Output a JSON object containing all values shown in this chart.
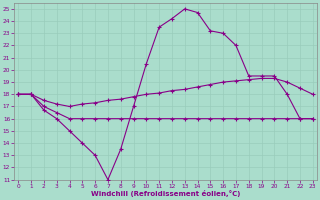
{
  "xlabel": "Windchill (Refroidissement éolien,°C)",
  "x": [
    0,
    1,
    2,
    3,
    4,
    5,
    6,
    7,
    8,
    9,
    10,
    11,
    12,
    13,
    14,
    15,
    16,
    17,
    18,
    19,
    20,
    21,
    22,
    23
  ],
  "line1": [
    18.0,
    18.0,
    16.7,
    16.0,
    15.0,
    14.0,
    13.0,
    11.0,
    13.5,
    17.0,
    20.5,
    23.5,
    24.2,
    25.0,
    24.7,
    23.2,
    23.0,
    22.0,
    19.5,
    19.5,
    19.5,
    18.0,
    16.0,
    16.0
  ],
  "line2": [
    18.0,
    18.0,
    17.0,
    16.5,
    16.0,
    16.0,
    16.0,
    16.0,
    16.0,
    16.0,
    16.0,
    16.0,
    16.0,
    16.0,
    16.0,
    16.0,
    16.0,
    16.0,
    16.0,
    16.0,
    16.0,
    16.0,
    16.0,
    16.0
  ],
  "line3": [
    18.0,
    18.0,
    17.5,
    17.2,
    17.0,
    17.2,
    17.3,
    17.5,
    17.6,
    17.8,
    18.0,
    18.1,
    18.3,
    18.4,
    18.6,
    18.8,
    19.0,
    19.1,
    19.2,
    19.3,
    19.3,
    19.0,
    18.5,
    18.0
  ],
  "line_color": "#880088",
  "bg_color": "#aaddcc",
  "grid_color": "#99ccbb",
  "ylim": [
    11,
    25.5
  ],
  "xlim": [
    -0.3,
    23.3
  ],
  "yticks": [
    11,
    12,
    13,
    14,
    15,
    16,
    17,
    18,
    19,
    20,
    21,
    22,
    23,
    24,
    25
  ],
  "xticks": [
    0,
    1,
    2,
    3,
    4,
    5,
    6,
    7,
    8,
    9,
    10,
    11,
    12,
    13,
    14,
    15,
    16,
    17,
    18,
    19,
    20,
    21,
    22,
    23
  ],
  "xlabel_color": "#880088",
  "tick_label_color": "#880088",
  "marker": "+",
  "markersize": 3,
  "linewidth": 0.8
}
